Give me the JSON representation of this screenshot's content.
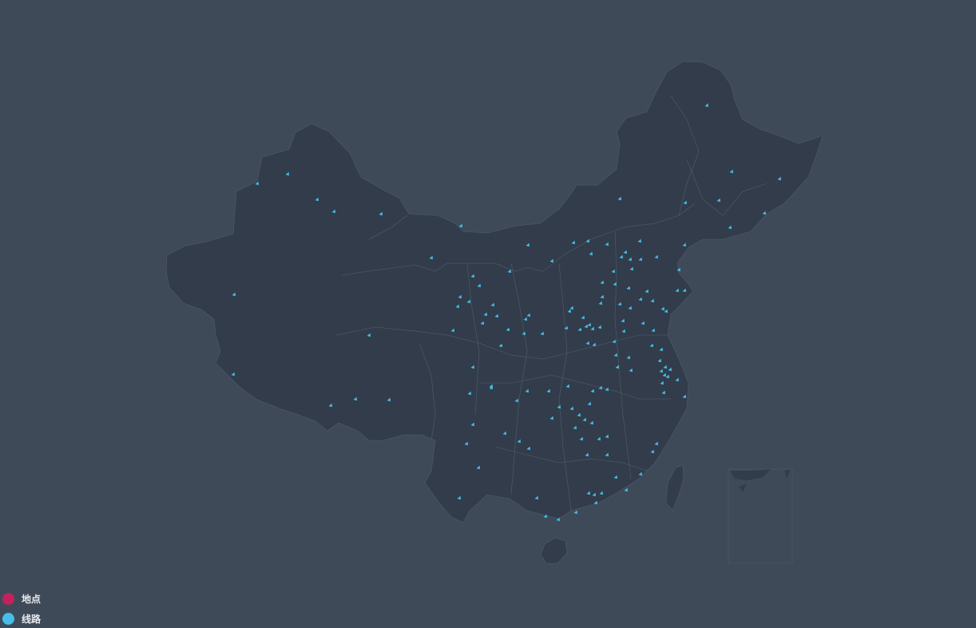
{
  "colors": {
    "background": "#3f4a59",
    "land": "#323c4a",
    "border": "#4a5666",
    "line_marker": "#46bee9",
    "place": "#c4225a"
  },
  "legend": {
    "items": [
      {
        "label": "地点",
        "color": "#c4225a",
        "icon": "circle-icon"
      },
      {
        "label": "线路",
        "color": "#46bee9",
        "icon": "circle-icon"
      }
    ]
  }
}
